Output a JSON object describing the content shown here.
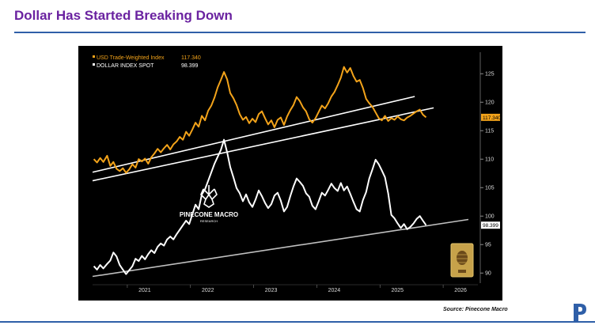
{
  "page": {
    "title": "Dollar Has Started Breaking Down",
    "source": "Source: Pinecone Macro"
  },
  "watermark": {
    "name": "PINECONE MACRO",
    "sub": "RESEARCH"
  },
  "colors": {
    "title": "#6a22a0",
    "rule": "#2f5fa8",
    "twi": "#f3a31a",
    "dxy": "#ffffff",
    "background": "#000000"
  },
  "chart_data": {
    "type": "line",
    "title": "",
    "xlabel": "",
    "ylabel": "",
    "ylim": [
      88.5,
      128.5
    ],
    "xlim": [
      2020.45,
      2026.55
    ],
    "yticks": [
      90,
      95,
      100,
      105,
      110,
      115,
      120,
      125
    ],
    "xticks": [
      {
        "label": "2021",
        "value": 2021.0
      },
      {
        "label": "2022",
        "value": 2022.0
      },
      {
        "label": "2023",
        "value": 2023.0
      },
      {
        "label": "2024",
        "value": 2024.0
      },
      {
        "label": "2025",
        "value": 2025.0
      },
      {
        "label": "2026",
        "value": 2026.0
      }
    ],
    "grid": false,
    "legend_position": "top-left",
    "series": [
      {
        "name": "USD Trade-Weighted Index",
        "last_value_text": "117.340",
        "last_value": 117.34,
        "color": "#f3a31a",
        "points": [
          [
            2020.47,
            110.0
          ],
          [
            2020.52,
            109.4
          ],
          [
            2020.57,
            110.2
          ],
          [
            2020.62,
            109.5
          ],
          [
            2020.68,
            110.6
          ],
          [
            2020.73,
            108.8
          ],
          [
            2020.78,
            109.5
          ],
          [
            2020.83,
            108.3
          ],
          [
            2020.88,
            107.9
          ],
          [
            2020.93,
            108.4
          ],
          [
            2020.98,
            107.6
          ],
          [
            2021.03,
            108.2
          ],
          [
            2021.08,
            109.1
          ],
          [
            2021.13,
            108.5
          ],
          [
            2021.18,
            110.0
          ],
          [
            2021.23,
            109.6
          ],
          [
            2021.28,
            110.1
          ],
          [
            2021.33,
            109.2
          ],
          [
            2021.38,
            110.3
          ],
          [
            2021.43,
            111.0
          ],
          [
            2021.48,
            111.8
          ],
          [
            2021.53,
            111.2
          ],
          [
            2021.58,
            111.9
          ],
          [
            2021.63,
            112.5
          ],
          [
            2021.68,
            111.7
          ],
          [
            2021.73,
            112.6
          ],
          [
            2021.78,
            113.1
          ],
          [
            2021.83,
            113.9
          ],
          [
            2021.88,
            113.4
          ],
          [
            2021.93,
            114.8
          ],
          [
            2021.98,
            114.1
          ],
          [
            2022.03,
            115.2
          ],
          [
            2022.08,
            116.4
          ],
          [
            2022.13,
            115.7
          ],
          [
            2022.18,
            117.6
          ],
          [
            2022.23,
            116.8
          ],
          [
            2022.28,
            118.5
          ],
          [
            2022.33,
            119.4
          ],
          [
            2022.38,
            120.8
          ],
          [
            2022.43,
            122.6
          ],
          [
            2022.48,
            123.9
          ],
          [
            2022.53,
            125.3
          ],
          [
            2022.58,
            124.0
          ],
          [
            2022.63,
            121.6
          ],
          [
            2022.68,
            120.7
          ],
          [
            2022.73,
            119.5
          ],
          [
            2022.78,
            117.9
          ],
          [
            2022.83,
            116.9
          ],
          [
            2022.88,
            117.4
          ],
          [
            2022.93,
            116.3
          ],
          [
            2022.98,
            117.1
          ],
          [
            2023.03,
            116.5
          ],
          [
            2023.08,
            117.9
          ],
          [
            2023.13,
            118.4
          ],
          [
            2023.18,
            117.2
          ],
          [
            2023.23,
            116.1
          ],
          [
            2023.28,
            116.8
          ],
          [
            2023.33,
            115.6
          ],
          [
            2023.38,
            116.9
          ],
          [
            2023.43,
            117.3
          ],
          [
            2023.48,
            116.0
          ],
          [
            2023.53,
            117.5
          ],
          [
            2023.58,
            118.6
          ],
          [
            2023.63,
            119.5
          ],
          [
            2023.68,
            120.9
          ],
          [
            2023.73,
            120.2
          ],
          [
            2023.78,
            119.1
          ],
          [
            2023.83,
            118.4
          ],
          [
            2023.88,
            117.0
          ],
          [
            2023.93,
            116.4
          ],
          [
            2023.98,
            117.2
          ],
          [
            2024.03,
            118.3
          ],
          [
            2024.08,
            119.4
          ],
          [
            2024.13,
            118.9
          ],
          [
            2024.18,
            119.8
          ],
          [
            2024.23,
            121.0
          ],
          [
            2024.28,
            121.8
          ],
          [
            2024.33,
            123.0
          ],
          [
            2024.38,
            124.3
          ],
          [
            2024.43,
            126.2
          ],
          [
            2024.48,
            125.2
          ],
          [
            2024.53,
            126.0
          ],
          [
            2024.58,
            124.6
          ],
          [
            2024.63,
            123.6
          ],
          [
            2024.68,
            123.9
          ],
          [
            2024.73,
            122.5
          ],
          [
            2024.78,
            120.6
          ],
          [
            2024.83,
            119.8
          ],
          [
            2024.88,
            119.2
          ],
          [
            2024.93,
            118.2
          ],
          [
            2024.98,
            117.2
          ],
          [
            2025.03,
            116.8
          ],
          [
            2025.08,
            117.6
          ],
          [
            2025.13,
            116.7
          ],
          [
            2025.18,
            117.2
          ],
          [
            2025.23,
            116.9
          ],
          [
            2025.28,
            117.5
          ],
          [
            2025.33,
            117.0
          ],
          [
            2025.38,
            116.8
          ],
          [
            2025.43,
            117.3
          ],
          [
            2025.48,
            117.6
          ],
          [
            2025.53,
            118.0
          ],
          [
            2025.58,
            118.4
          ],
          [
            2025.63,
            118.7
          ],
          [
            2025.68,
            117.8
          ],
          [
            2025.73,
            117.34
          ]
        ]
      },
      {
        "name": "DOLLAR INDEX SPOT",
        "last_value_text": "98.399",
        "last_value": 98.399,
        "color": "#ffffff",
        "points": [
          [
            2020.47,
            91.2
          ],
          [
            2020.52,
            90.6
          ],
          [
            2020.57,
            91.4
          ],
          [
            2020.62,
            90.8
          ],
          [
            2020.68,
            91.6
          ],
          [
            2020.73,
            92.2
          ],
          [
            2020.78,
            93.6
          ],
          [
            2020.83,
            92.9
          ],
          [
            2020.88,
            91.4
          ],
          [
            2020.93,
            90.6
          ],
          [
            2020.98,
            89.8
          ],
          [
            2021.03,
            90.5
          ],
          [
            2021.08,
            91.2
          ],
          [
            2021.13,
            92.5
          ],
          [
            2021.18,
            92.1
          ],
          [
            2021.23,
            93.0
          ],
          [
            2021.28,
            92.4
          ],
          [
            2021.33,
            93.3
          ],
          [
            2021.38,
            94.0
          ],
          [
            2021.43,
            93.5
          ],
          [
            2021.48,
            94.6
          ],
          [
            2021.53,
            95.2
          ],
          [
            2021.58,
            94.8
          ],
          [
            2021.63,
            95.9
          ],
          [
            2021.68,
            96.4
          ],
          [
            2021.73,
            95.9
          ],
          [
            2021.78,
            96.8
          ],
          [
            2021.83,
            97.6
          ],
          [
            2021.88,
            98.4
          ],
          [
            2021.93,
            99.2
          ],
          [
            2021.98,
            98.6
          ],
          [
            2022.03,
            100.3
          ],
          [
            2022.08,
            102.0
          ],
          [
            2022.13,
            101.2
          ],
          [
            2022.18,
            103.8
          ],
          [
            2022.23,
            104.7
          ],
          [
            2022.28,
            106.2
          ],
          [
            2022.33,
            107.7
          ],
          [
            2022.38,
            109.2
          ],
          [
            2022.43,
            110.4
          ],
          [
            2022.48,
            111.6
          ],
          [
            2022.53,
            113.4
          ],
          [
            2022.58,
            111.2
          ],
          [
            2022.63,
            108.6
          ],
          [
            2022.68,
            106.8
          ],
          [
            2022.73,
            104.9
          ],
          [
            2022.78,
            104.0
          ],
          [
            2022.83,
            102.6
          ],
          [
            2022.88,
            103.8
          ],
          [
            2022.93,
            102.4
          ],
          [
            2022.98,
            101.6
          ],
          [
            2023.03,
            102.9
          ],
          [
            2023.08,
            104.5
          ],
          [
            2023.13,
            103.5
          ],
          [
            2023.18,
            102.3
          ],
          [
            2023.23,
            101.4
          ],
          [
            2023.28,
            102.1
          ],
          [
            2023.33,
            103.6
          ],
          [
            2023.38,
            104.1
          ],
          [
            2023.43,
            102.7
          ],
          [
            2023.48,
            100.8
          ],
          [
            2023.53,
            101.6
          ],
          [
            2023.58,
            103.5
          ],
          [
            2023.63,
            105.2
          ],
          [
            2023.68,
            106.6
          ],
          [
            2023.73,
            106.0
          ],
          [
            2023.78,
            105.3
          ],
          [
            2023.83,
            104.0
          ],
          [
            2023.88,
            103.4
          ],
          [
            2023.93,
            101.8
          ],
          [
            2023.98,
            101.2
          ],
          [
            2024.03,
            102.6
          ],
          [
            2024.08,
            104.1
          ],
          [
            2024.13,
            103.6
          ],
          [
            2024.18,
            104.6
          ],
          [
            2024.23,
            105.7
          ],
          [
            2024.28,
            104.9
          ],
          [
            2024.33,
            104.4
          ],
          [
            2024.38,
            105.8
          ],
          [
            2024.43,
            104.5
          ],
          [
            2024.48,
            105.2
          ],
          [
            2024.53,
            103.9
          ],
          [
            2024.58,
            102.5
          ],
          [
            2024.63,
            101.2
          ],
          [
            2024.68,
            100.8
          ],
          [
            2024.73,
            102.8
          ],
          [
            2024.78,
            104.2
          ],
          [
            2024.83,
            106.6
          ],
          [
            2024.88,
            108.2
          ],
          [
            2024.93,
            109.9
          ],
          [
            2024.98,
            109.1
          ],
          [
            2025.03,
            108.0
          ],
          [
            2025.08,
            106.8
          ],
          [
            2025.13,
            104.0
          ],
          [
            2025.18,
            100.2
          ],
          [
            2025.23,
            99.6
          ],
          [
            2025.28,
            98.7
          ],
          [
            2025.33,
            97.9
          ],
          [
            2025.38,
            98.6
          ],
          [
            2025.43,
            97.7
          ],
          [
            2025.48,
            98.1
          ],
          [
            2025.53,
            98.7
          ],
          [
            2025.58,
            99.5
          ],
          [
            2025.63,
            100.0
          ],
          [
            2025.68,
            99.2
          ],
          [
            2025.73,
            98.399
          ]
        ]
      }
    ],
    "trendlines": [
      {
        "name": "TWI upper trendline",
        "from": [
          2020.45,
          107.7
        ],
        "to": [
          2025.55,
          121.0
        ]
      },
      {
        "name": "TWI lower trendline",
        "from": [
          2020.45,
          106.2
        ],
        "to": [
          2025.85,
          119.0
        ]
      },
      {
        "name": "DXY support trendline",
        "from": [
          2020.45,
          89.4
        ],
        "to": [
          2026.4,
          99.4
        ]
      }
    ]
  }
}
